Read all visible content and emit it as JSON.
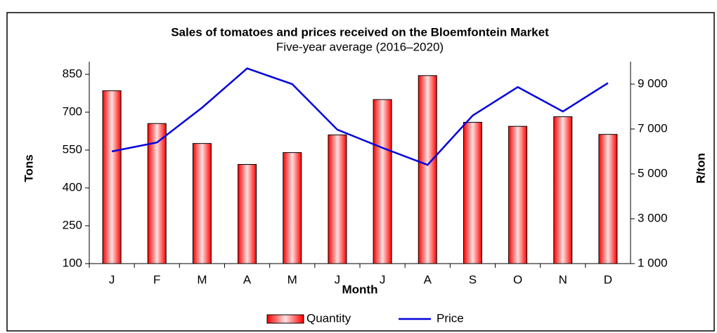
{
  "chart_data": {
    "type": "bar-line",
    "title": "Sales of tomatoes and prices received on the Bloemfontein Market",
    "subtitle": "Five-year average (2016–2020)",
    "x_label": "Month",
    "y_label": "Tons",
    "y2_label": "R/ton",
    "categories": [
      "J",
      "F",
      "M",
      "A",
      "M",
      "J",
      "J",
      "A",
      "S",
      "O",
      "N",
      "D"
    ],
    "series": [
      {
        "name": "Quantity",
        "type": "bar",
        "color": "#ff0000",
        "values": [
          785,
          655,
          576,
          493,
          540,
          610,
          750,
          845,
          660,
          644,
          682,
          612
        ]
      },
      {
        "name": "Price",
        "type": "line",
        "axis": "y2",
        "color": "#0000dd",
        "values": [
          6000,
          6400,
          7950,
          9700,
          9000,
          6970,
          6160,
          5400,
          7600,
          8870,
          7780,
          9050
        ]
      }
    ],
    "ylim": [
      100,
      900
    ],
    "yticks": [
      100,
      250,
      400,
      550,
      700,
      850
    ],
    "y2lim": [
      1000,
      10000
    ],
    "y2ticks": [
      {
        "value": 1000,
        "label": "1 000"
      },
      {
        "value": 3000,
        "label": "3 000"
      },
      {
        "value": 5000,
        "label": "5 000"
      },
      {
        "value": 7000,
        "label": "7 000"
      },
      {
        "value": 9000,
        "label": "9 000"
      }
    ],
    "legend": "bottom"
  }
}
